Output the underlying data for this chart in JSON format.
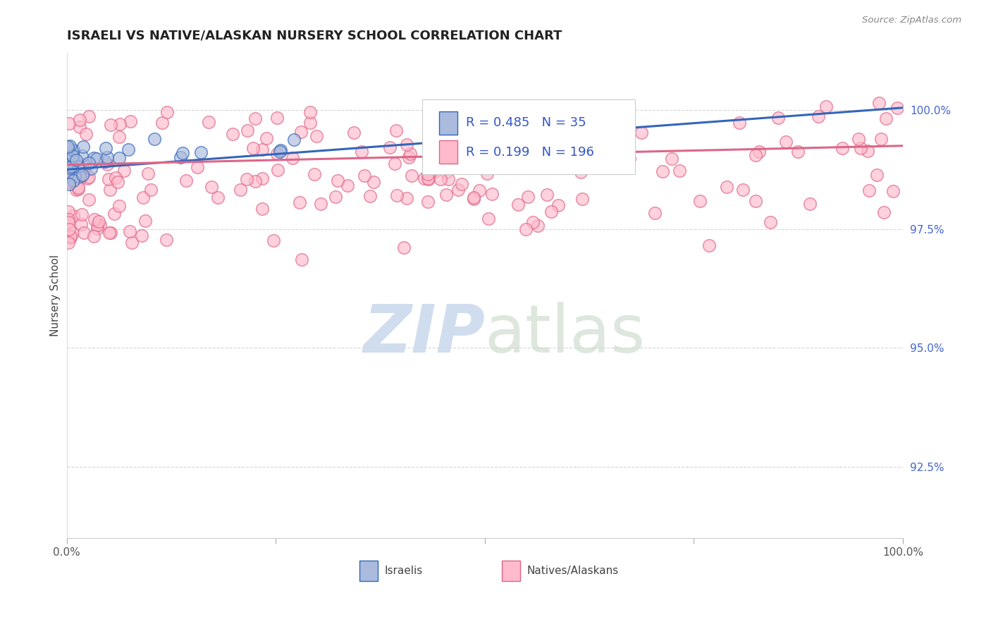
{
  "title": "ISRAELI VS NATIVE/ALASKAN NURSERY SCHOOL CORRELATION CHART",
  "source": "Source: ZipAtlas.com",
  "ylabel": "Nursery School",
  "xlim": [
    0.0,
    100.0
  ],
  "ylim": [
    91.0,
    101.2
  ],
  "yticks": [
    92.5,
    95.0,
    97.5,
    100.0
  ],
  "ytick_labels": [
    "92.5%",
    "95.0%",
    "97.5%",
    "100.0%"
  ],
  "background_color": "#ffffff",
  "grid_color": "#cccccc",
  "legend_R_blue": "0.485",
  "legend_N_blue": "35",
  "legend_R_pink": "0.199",
  "legend_N_pink": "196",
  "blue_face_color": "#aabbdd",
  "blue_edge_color": "#3366bb",
  "blue_line_color": "#3366bb",
  "pink_face_color": "#ffbbcc",
  "pink_edge_color": "#dd6688",
  "pink_line_color": "#dd6688",
  "legend_label_blue": "Israelis",
  "legend_label_pink": "Natives/Alaskans",
  "watermark_zip_color": "#c8d8ec",
  "watermark_atlas_color": "#c8d8c8",
  "blue_regression_start_y": 98.75,
  "blue_regression_end_y": 100.05,
  "pink_regression_start_y": 98.85,
  "pink_regression_end_y": 99.25
}
